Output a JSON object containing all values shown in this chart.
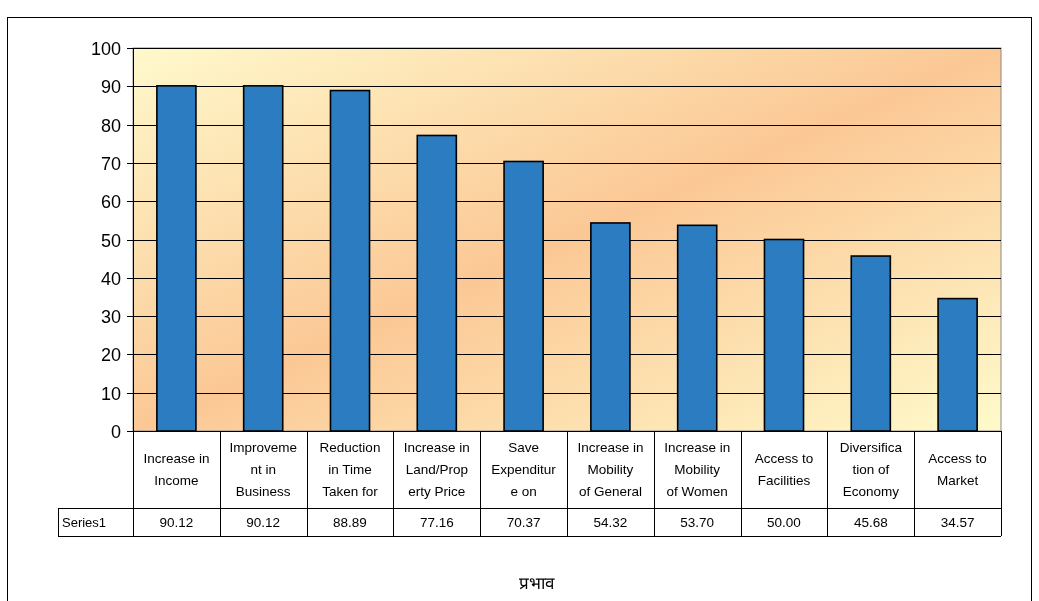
{
  "chart_data": {
    "type": "bar",
    "xlabel": "प्रभाव",
    "categories": [
      "Increase in\nIncome",
      "Improveme\nnt in\nBusiness",
      "Reduction\nin Time\nTaken for",
      "Increase in\nLand/Prop\nerty Price",
      "Save\nExpenditur\ne on",
      "Increase in\nMobility\nof General",
      "Increase in\nMobility\nof Women",
      "Access to\nFacilities",
      "Diversifica\ntion of\nEconomy",
      "Access to\nMarket"
    ],
    "series": [
      {
        "name": "Series1",
        "color": "#2b7cc0",
        "values": [
          90.12,
          90.12,
          88.89,
          77.16,
          70.37,
          54.32,
          53.7,
          50.0,
          45.68,
          34.57
        ],
        "value_labels": [
          "90.12",
          "90.12",
          "88.89",
          "77.16",
          "70.37",
          "54.32",
          "53.70",
          "50.00",
          "45.68",
          "34.57"
        ]
      }
    ],
    "ylim": [
      0,
      100
    ],
    "yticks": [
      0,
      10,
      20,
      30,
      40,
      50,
      60,
      70,
      80,
      90,
      100
    ],
    "grid": "y"
  }
}
